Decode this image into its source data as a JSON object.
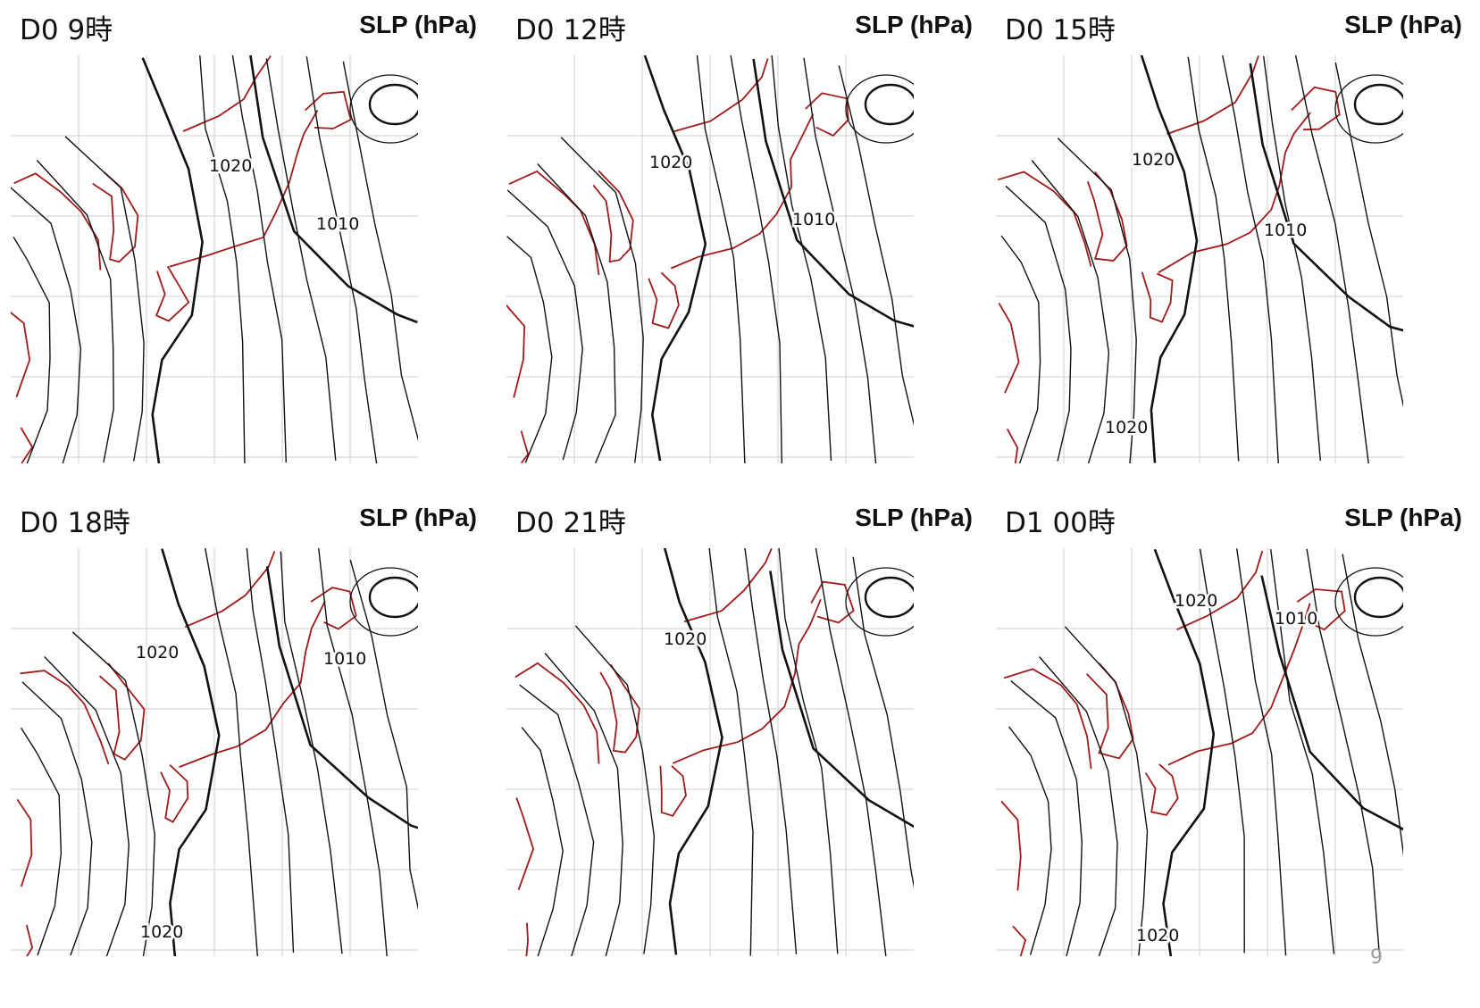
{
  "colors": {
    "isobar": "#111111",
    "coastline": "#a11a1a",
    "grid": "#cfcfcf"
  },
  "page_number": "9",
  "panels": [
    {
      "time_label": "D0 9時",
      "variable_label": "SLP (hPa)",
      "contour_labels": [
        {
          "text": "1020",
          "x": 222,
          "y": 130
        },
        {
          "text": "1010",
          "x": 342,
          "y": 195
        }
      ]
    },
    {
      "time_label": "D0 12時",
      "variable_label": "SLP (hPa)",
      "contour_labels": [
        {
          "text": "1020",
          "x": 160,
          "y": 126
        },
        {
          "text": "1010",
          "x": 320,
          "y": 190
        }
      ]
    },
    {
      "time_label": "D0 15時",
      "variable_label": "SLP (hPa)",
      "contour_labels": [
        {
          "text": "1020",
          "x": 152,
          "y": 123
        },
        {
          "text": "1010",
          "x": 300,
          "y": 202
        },
        {
          "text": "1020",
          "x": 122,
          "y": 423
        }
      ]
    },
    {
      "time_label": "D0 18時",
      "variable_label": "SLP (hPa)",
      "contour_labels": [
        {
          "text": "1020",
          "x": 140,
          "y": 123
        },
        {
          "text": "1010",
          "x": 350,
          "y": 130
        },
        {
          "text": "1020",
          "x": 145,
          "y": 436
        }
      ]
    },
    {
      "time_label": "D0 21時",
      "variable_label": "SLP (hPa)",
      "contour_labels": [
        {
          "text": "1020",
          "x": 176,
          "y": 108
        }
      ]
    },
    {
      "time_label": "D1 00時",
      "variable_label": "SLP (hPa)",
      "contour_labels": [
        {
          "text": "1020",
          "x": 200,
          "y": 65
        },
        {
          "text": "1010",
          "x": 312,
          "y": 85
        },
        {
          "text": "1020",
          "x": 157,
          "y": 440
        }
      ]
    }
  ]
}
